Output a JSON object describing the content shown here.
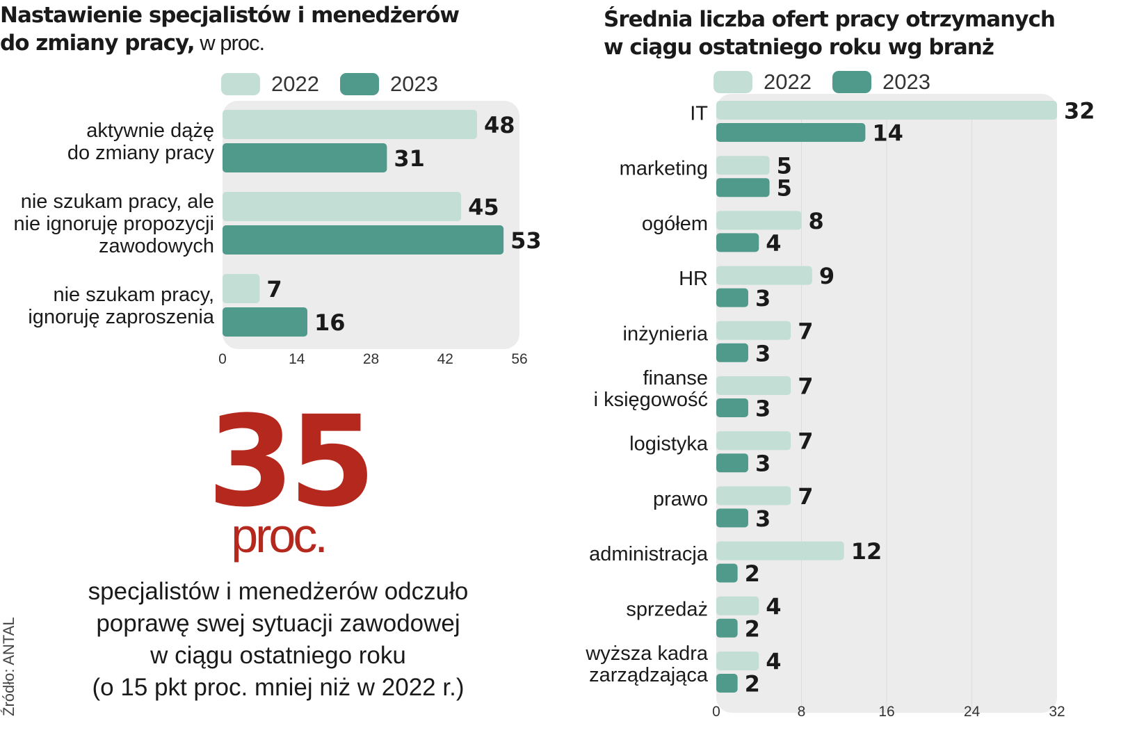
{
  "left": {
    "title_bold_1": "Nastawienie specjalistów i menedżerów",
    "title_bold_2": "do zmiany pracy,",
    "title_light": " w proc."
  },
  "right": {
    "title_1": "Średnia  liczba ofert pracy otrzymanych",
    "title_2": "w ciągu ostatniego roku wg branż"
  },
  "legend": {
    "y2022": "2022",
    "y2023": "2023"
  },
  "colors": {
    "c2022": "#c3ded5",
    "c2023": "#4f9a8b",
    "panel": "#ececec",
    "accent": "#b5281e"
  },
  "highlight": {
    "number": "35",
    "unit": "proc.",
    "lines": [
      "specjalistów i menedżerów odczuło",
      "poprawę swej sytuacji zawodowej",
      "w ciągu ostatniego roku",
      "(o 15 pkt proc. mniej niż w 2022 r.)"
    ]
  },
  "source": "Źródło: ANTAL",
  "chart_data": [
    {
      "type": "bar",
      "orientation": "horizontal",
      "title": "Nastawienie specjalistów i menedżerów do zmiany pracy, w proc.",
      "categories": [
        [
          "aktywnie dążę",
          "do zmiany pracy"
        ],
        [
          "nie szukam pracy, ale",
          "nie ignoruję propozycji",
          "zawodowych"
        ],
        [
          "nie szukam pracy,",
          "ignoruję zaproszenia"
        ]
      ],
      "series": [
        {
          "name": "2022",
          "values": [
            48,
            45,
            7
          ]
        },
        {
          "name": "2023",
          "values": [
            31,
            53,
            16
          ]
        }
      ],
      "xlim": [
        0,
        56
      ],
      "xticks": [
        "0",
        "14",
        "28",
        "42",
        "56"
      ]
    },
    {
      "type": "bar",
      "orientation": "horizontal",
      "title": "Średnia liczba ofert pracy otrzymanych w ciągu ostatniego roku wg branż",
      "categories": [
        [
          "IT"
        ],
        [
          "marketing"
        ],
        [
          "ogółem"
        ],
        [
          "HR"
        ],
        [
          "inżynieria"
        ],
        [
          "finanse",
          "i księgowość"
        ],
        [
          "logistyka"
        ],
        [
          "prawo"
        ],
        [
          "administracja"
        ],
        [
          "sprzedaż"
        ],
        [
          "wyższa kadra",
          "zarządzająca"
        ]
      ],
      "series": [
        {
          "name": "2022",
          "values": [
            32,
            5,
            8,
            9,
            7,
            7,
            7,
            7,
            12,
            4,
            4
          ]
        },
        {
          "name": "2023",
          "values": [
            14,
            5,
            4,
            3,
            3,
            3,
            3,
            3,
            2,
            2,
            2
          ]
        }
      ],
      "xlim": [
        0,
        32
      ],
      "xticks": [
        "0",
        "8",
        "16",
        "24",
        "32"
      ]
    }
  ]
}
